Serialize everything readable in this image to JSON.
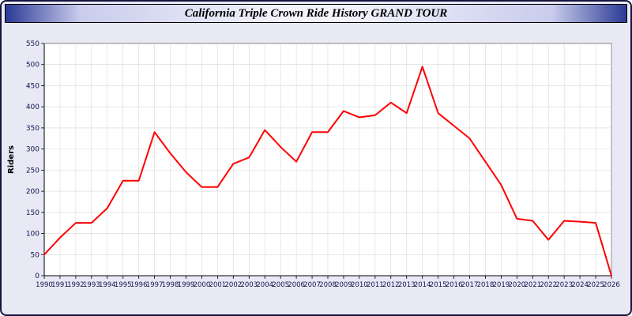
{
  "title": "California Triple Crown Ride History GRAND TOUR",
  "colors": {
    "page_background": "#E9E9F6",
    "outer_border": "#14143C",
    "title_gradient_edge": "#2B3A96",
    "title_gradient_center": "#F3F3FB",
    "plot_background": "#FFFFFF",
    "grid": "#D8D8D8",
    "axis": "#000000",
    "axis_text": "#14144A",
    "line": "#FF0000"
  },
  "chart_data": {
    "type": "line",
    "title": "California Triple Crown Ride History GRAND TOUR",
    "xlabel": "",
    "ylabel": "Riders",
    "ylim": [
      0,
      550
    ],
    "ytick_step": 50,
    "grid": true,
    "legend": "none",
    "line_color": "#FF0000",
    "x": [
      1990,
      1991,
      1992,
      1993,
      1994,
      1995,
      1996,
      1997,
      1998,
      1999,
      2000,
      2001,
      2002,
      2003,
      2004,
      2005,
      2006,
      2007,
      2008,
      2009,
      2010,
      2011,
      2012,
      2013,
      2014,
      2015,
      2016,
      2017,
      2018,
      2019,
      2020,
      2021,
      2022,
      2023,
      2024,
      2025,
      2026
    ],
    "values": [
      50,
      90,
      125,
      125,
      160,
      225,
      225,
      340,
      290,
      245,
      210,
      210,
      265,
      280,
      345,
      305,
      270,
      340,
      340,
      390,
      375,
      380,
      410,
      385,
      495,
      385,
      355,
      325,
      270,
      215,
      135,
      130,
      85,
      130,
      128,
      125,
      0
    ]
  }
}
